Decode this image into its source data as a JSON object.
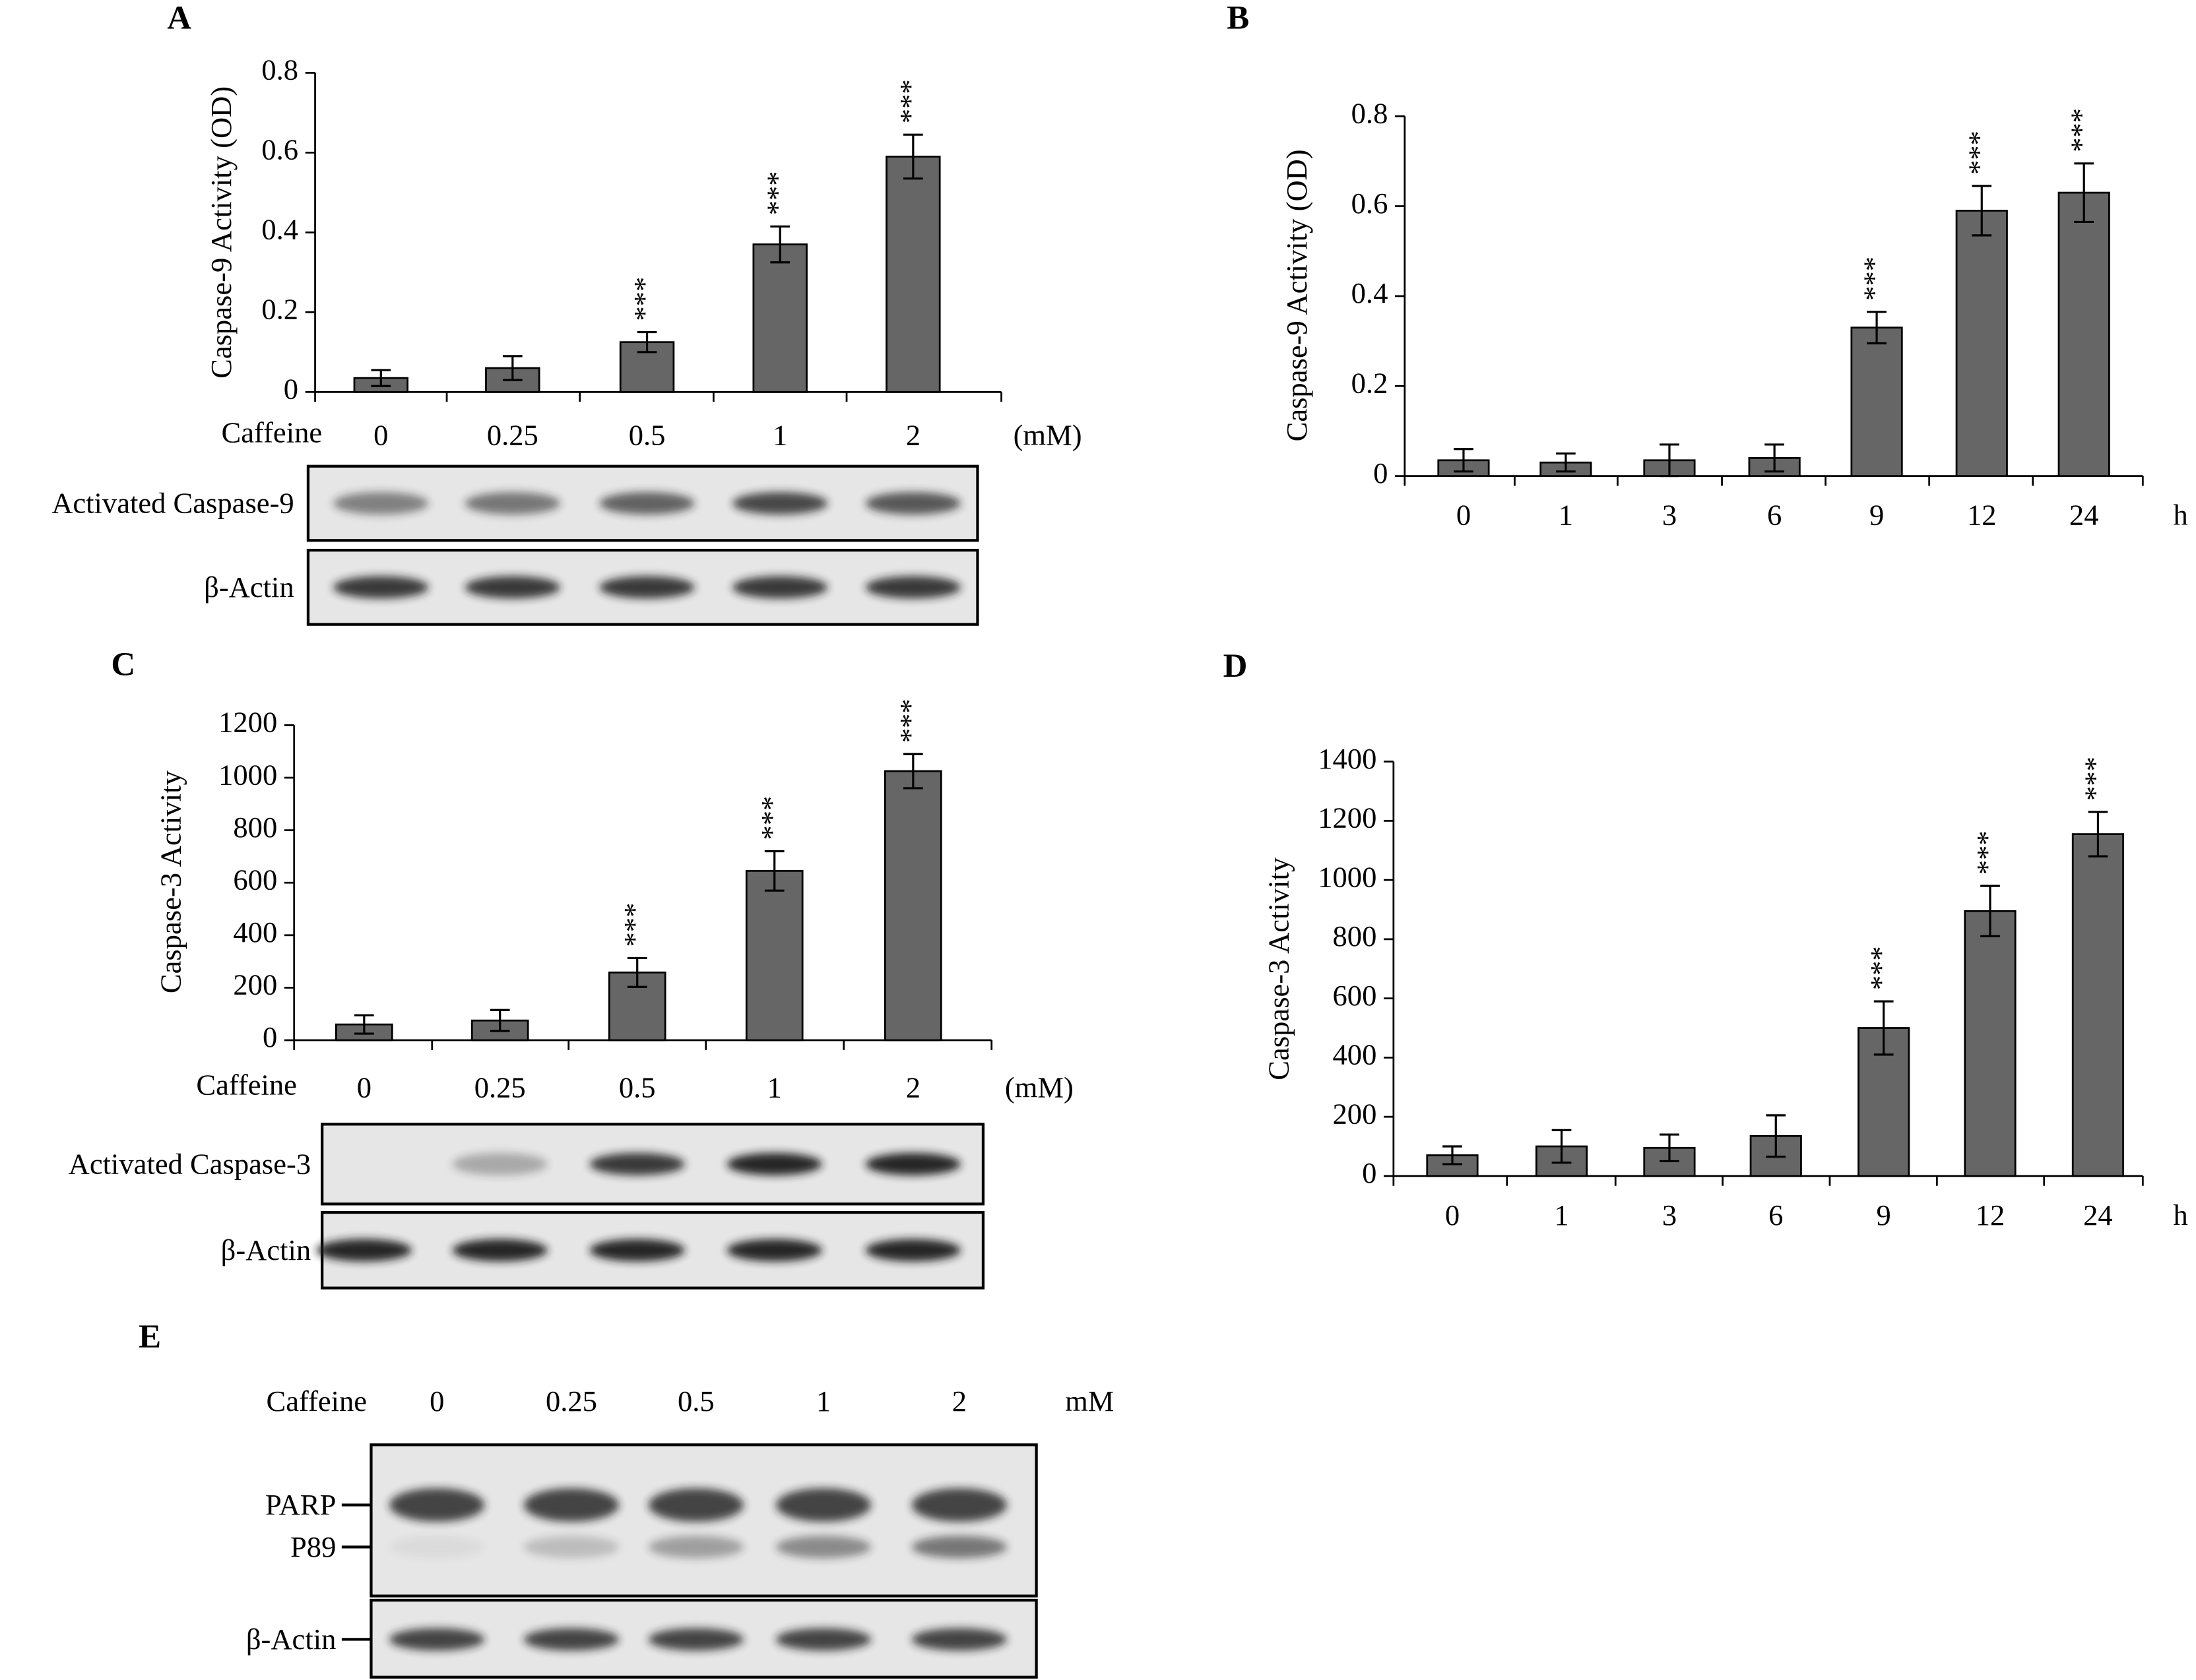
{
  "chart_data": [
    {
      "type": "bar",
      "panel": "A",
      "ylabel": "Caspase-9 Activity (OD)",
      "xlabel_prefix": "Caffeine",
      "x_unit": "(mM)",
      "categories": [
        "0",
        "0.25",
        "0.5",
        "1",
        "2"
      ],
      "values": [
        0.035,
        0.06,
        0.125,
        0.37,
        0.59
      ],
      "errors": [
        0.02,
        0.03,
        0.025,
        0.045,
        0.055
      ],
      "annotations": [
        null,
        null,
        "***",
        "***",
        "***"
      ],
      "ylim": [
        0,
        0.8
      ],
      "yticks": [
        0,
        0.2,
        0.4,
        0.6,
        0.8
      ],
      "color": "#666666",
      "blots": [
        {
          "labels": [
            "Activated Caspase-9"
          ]
        },
        {
          "labels": [
            "β-Actin"
          ]
        }
      ]
    },
    {
      "type": "bar",
      "panel": "B",
      "ylabel": "Caspase-9 Activity (OD)",
      "x_unit": "h",
      "categories": [
        "0",
        "1",
        "3",
        "6",
        "9",
        "12",
        "24"
      ],
      "values": [
        0.035,
        0.03,
        0.035,
        0.04,
        0.33,
        0.59,
        0.63
      ],
      "errors": [
        0.025,
        0.02,
        0.035,
        0.03,
        0.035,
        0.055,
        0.065
      ],
      "annotations": [
        null,
        null,
        null,
        null,
        "***",
        "***",
        "***"
      ],
      "ylim": [
        0,
        0.8
      ],
      "yticks": [
        0,
        0.2,
        0.4,
        0.6,
        0.8
      ],
      "color": "#666666"
    },
    {
      "type": "bar",
      "panel": "C",
      "ylabel": "Caspase-3 Activity",
      "xlabel_prefix": "Caffeine",
      "x_unit": "(mM)",
      "categories": [
        "0",
        "0.25",
        "0.5",
        "1",
        "2"
      ],
      "values": [
        60,
        75,
        258,
        645,
        1025
      ],
      "errors": [
        35,
        40,
        55,
        75,
        65
      ],
      "annotations": [
        null,
        null,
        "***",
        "***",
        "***"
      ],
      "ylim": [
        0,
        1200
      ],
      "yticks": [
        0,
        200,
        400,
        600,
        800,
        1000,
        1200
      ],
      "color": "#666666",
      "blots": [
        {
          "labels": [
            "Activated Caspase-3"
          ]
        },
        {
          "labels": [
            "β-Actin"
          ]
        }
      ]
    },
    {
      "type": "bar",
      "panel": "D",
      "ylabel": "Caspase-3 Activity",
      "x_unit": "h",
      "categories": [
        "0",
        "1",
        "3",
        "6",
        "9",
        "12",
        "24"
      ],
      "values": [
        70,
        100,
        95,
        135,
        500,
        895,
        1155
      ],
      "errors": [
        30,
        55,
        45,
        70,
        90,
        85,
        75
      ],
      "annotations": [
        null,
        null,
        null,
        null,
        "***",
        "***",
        "***"
      ],
      "ylim": [
        0,
        1400
      ],
      "yticks": [
        0,
        200,
        400,
        600,
        800,
        1000,
        1200,
        1400
      ],
      "color": "#666666"
    },
    {
      "type": "blot",
      "panel": "E",
      "xlabel_prefix": "Caffeine",
      "x_unit": "mM",
      "categories": [
        "0",
        "0.25",
        "0.5",
        "1",
        "2"
      ],
      "blots": [
        {
          "labels": [
            "PARP",
            "P89"
          ]
        },
        {
          "labels": [
            "β-Actin"
          ]
        }
      ]
    }
  ]
}
